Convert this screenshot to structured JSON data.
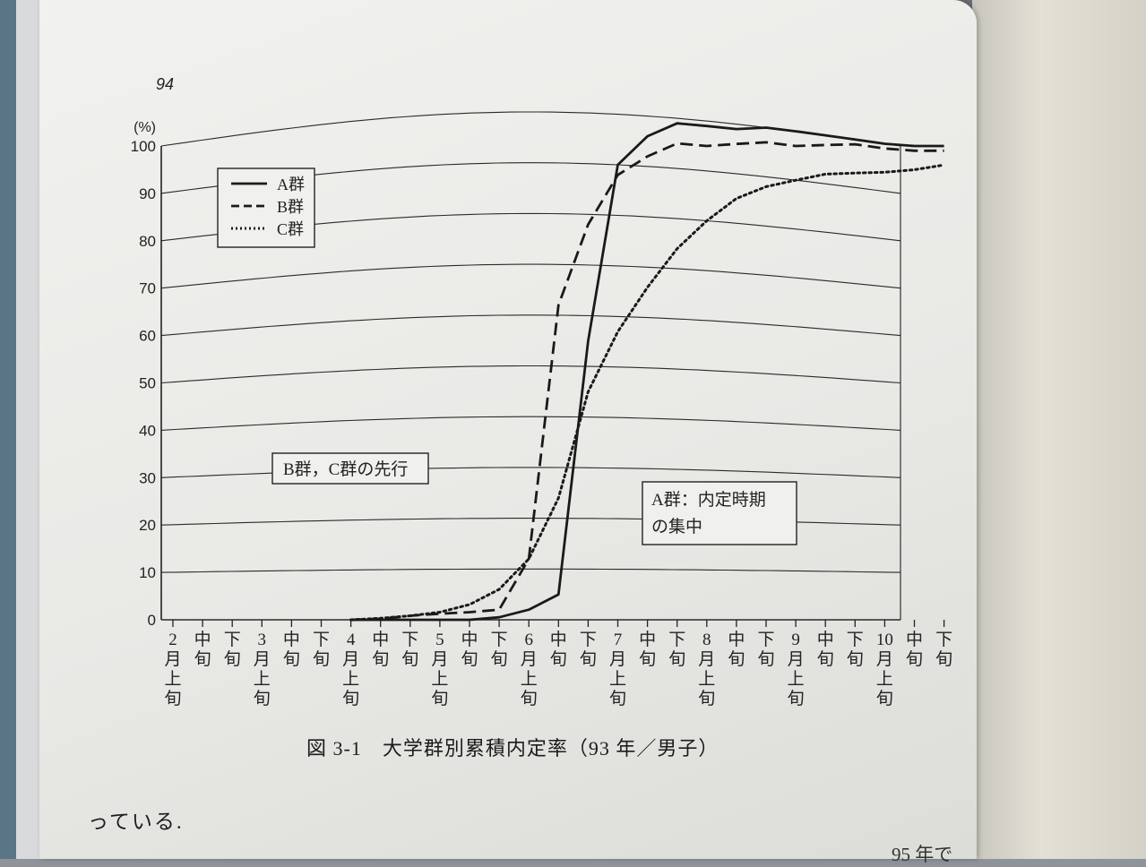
{
  "page": {
    "number": "94",
    "caption": "図 3-1　大学群別累積内定率（93 年／男子）",
    "body_text": "っている.",
    "bottom_text": "95 年で"
  },
  "chart_data": {
    "type": "line",
    "title": "図 3-1　大学群別累積内定率（93 年／男子）",
    "y_unit": "(%)",
    "ylim": [
      0,
      100
    ],
    "yticks": [
      0,
      10,
      20,
      30,
      40,
      50,
      60,
      70,
      80,
      90,
      100
    ],
    "grid": true,
    "legend_position": "top-left",
    "categories": [
      [
        "2",
        "月",
        "上",
        "旬"
      ],
      [
        "中",
        "旬"
      ],
      [
        "下",
        "旬"
      ],
      [
        "3",
        "月",
        "上",
        "旬"
      ],
      [
        "中",
        "旬"
      ],
      [
        "下",
        "旬"
      ],
      [
        "4",
        "月",
        "上",
        "旬"
      ],
      [
        "中",
        "旬"
      ],
      [
        "下",
        "旬"
      ],
      [
        "5",
        "月",
        "上",
        "旬"
      ],
      [
        "中",
        "旬"
      ],
      [
        "下",
        "旬"
      ],
      [
        "6",
        "月",
        "上",
        "旬"
      ],
      [
        "中",
        "旬"
      ],
      [
        "下",
        "旬"
      ],
      [
        "7",
        "月",
        "上",
        "旬"
      ],
      [
        "中",
        "旬"
      ],
      [
        "下",
        "旬"
      ],
      [
        "8",
        "月",
        "上",
        "旬"
      ],
      [
        "中",
        "旬"
      ],
      [
        "下",
        "旬"
      ],
      [
        "9",
        "月",
        "上",
        "旬"
      ],
      [
        "中",
        "旬"
      ],
      [
        "下",
        "旬"
      ],
      [
        "10",
        "月",
        "上",
        "旬"
      ],
      [
        "中",
        "旬"
      ],
      [
        "下",
        "旬"
      ]
    ],
    "series": [
      {
        "name": "A群",
        "style": "solid",
        "color": "#1a1a1a",
        "values": [
          null,
          null,
          null,
          null,
          null,
          null,
          0,
          0,
          0,
          0,
          0,
          0.5,
          2,
          5,
          55,
          90,
          96,
          99,
          99,
          99,
          100,
          100,
          100,
          100,
          100,
          100,
          100
        ]
      },
      {
        "name": "B群",
        "style": "dashed",
        "color": "#1a1a1a",
        "values": [
          null,
          null,
          null,
          null,
          null,
          null,
          0,
          0.2,
          0.8,
          1.2,
          1.5,
          2,
          12,
          62,
          78,
          88,
          92,
          95,
          95,
          96,
          97,
          97,
          98,
          99,
          99,
          99,
          99
        ]
      },
      {
        "name": "C群",
        "style": "dotted",
        "color": "#1a1a1a",
        "values": [
          null,
          null,
          null,
          null,
          null,
          null,
          0,
          0.3,
          0.8,
          1.5,
          3,
          6,
          12,
          24,
          45,
          57,
          66,
          74,
          80,
          85,
          88,
          90,
          92,
          93,
          94,
          95,
          96
        ]
      }
    ],
    "annotations": [
      {
        "text": "B群，C群の先行"
      },
      {
        "lines": [
          "A群：内定時期",
          "の集中"
        ]
      }
    ]
  }
}
